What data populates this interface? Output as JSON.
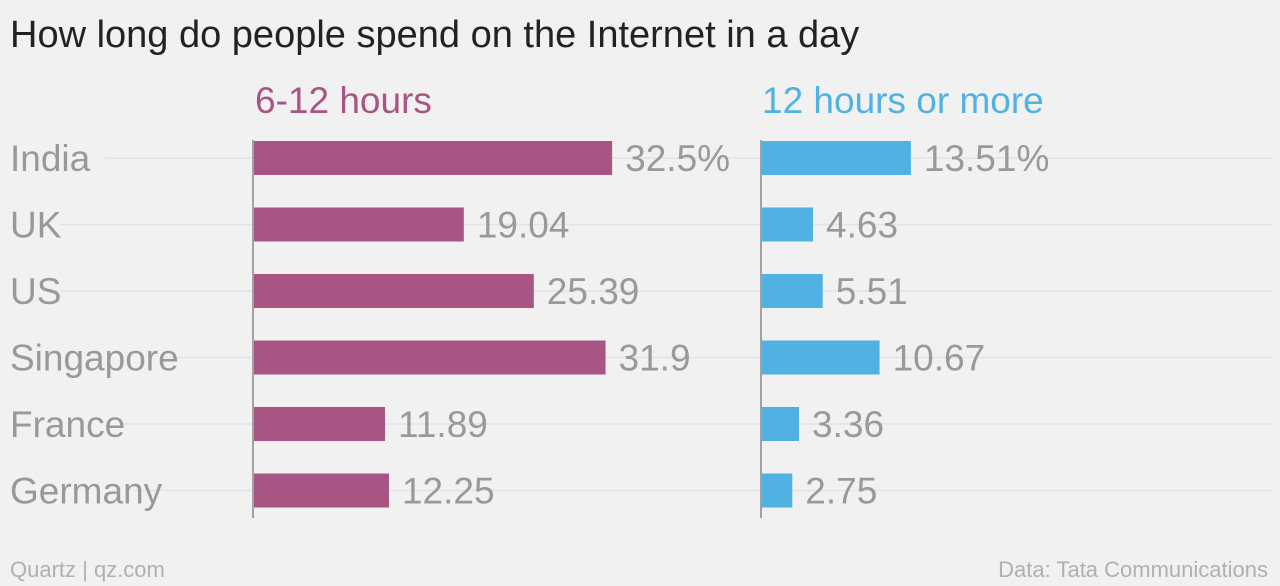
{
  "title": "How long do people spend on the Internet in a day",
  "footer": {
    "brand": "Quartz | qz.com",
    "source": "Data: Tata Communications"
  },
  "colors": {
    "series_6_12": "#a85584",
    "series_12_plus": "#51b1e3",
    "label": "#999999",
    "gridline": "#e3e3e3",
    "axis": "#888888"
  },
  "chart_data": {
    "type": "bar",
    "orientation": "horizontal",
    "categories": [
      "India",
      "UK",
      "US",
      "Singapore",
      "France",
      "Germany"
    ],
    "series": [
      {
        "name": "6-12 hours",
        "values": [
          32.5,
          19.04,
          25.39,
          31.9,
          11.89,
          12.25
        ],
        "labels": [
          "32.5%",
          "19.04",
          "25.39",
          "31.9",
          "11.89",
          "12.25"
        ],
        "color": "#a85584"
      },
      {
        "name": "12 hours or more",
        "values": [
          13.51,
          4.63,
          5.51,
          10.67,
          3.36,
          2.75
        ],
        "labels": [
          "13.51%",
          "4.63",
          "5.51",
          "10.67",
          "3.36",
          "2.75"
        ],
        "color": "#51b1e3"
      }
    ],
    "unit": "%",
    "grid": true,
    "layout": "side-by-side panels"
  }
}
